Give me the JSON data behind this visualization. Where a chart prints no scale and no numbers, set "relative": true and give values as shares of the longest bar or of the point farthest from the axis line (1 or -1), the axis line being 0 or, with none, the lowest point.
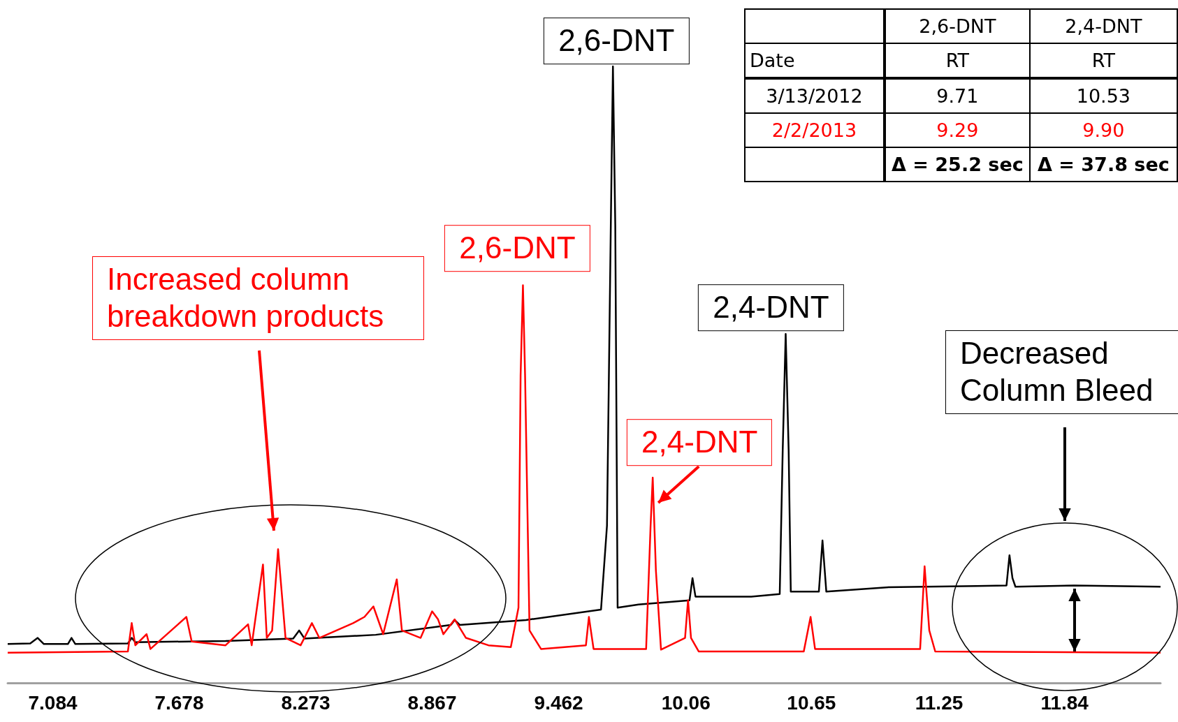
{
  "chart_data": {
    "type": "line",
    "relative": true,
    "xlim": [
      6.872,
      12.291
    ],
    "xticks": [
      7.084,
      7.678,
      8.273,
      8.867,
      9.462,
      10.06,
      10.65,
      11.25,
      11.84
    ],
    "series": [
      {
        "color": "#000000",
        "x": [
          6.872,
          6.978,
          7.013,
          7.042,
          7.155,
          7.172,
          7.19,
          7.437,
          7.455,
          7.472,
          7.896,
          8.214,
          8.242,
          8.267,
          8.602,
          8.955,
          8.973,
          8.997,
          9.308,
          9.661,
          9.689,
          9.707,
          9.717,
          9.728,
          9.739,
          9.837,
          10.077,
          10.091,
          10.105,
          10.367,
          10.501,
          10.515,
          10.529,
          10.543,
          10.553,
          10.685,
          10.702,
          10.72,
          11.002,
          11.426,
          11.567,
          11.581,
          11.595,
          11.609,
          11.885,
          12.291
        ],
        "values": [
          0.063,
          0.064,
          0.073,
          0.063,
          0.063,
          0.073,
          0.063,
          0.064,
          0.073,
          0.066,
          0.068,
          0.072,
          0.085,
          0.072,
          0.078,
          0.094,
          0.102,
          0.094,
          0.102,
          0.119,
          0.255,
          0.742,
          1,
          0.742,
          0.122,
          0.127,
          0.134,
          0.17,
          0.14,
          0.14,
          0.144,
          0.377,
          0.566,
          0.377,
          0.148,
          0.148,
          0.231,
          0.148,
          0.155,
          0.157,
          0.158,
          0.207,
          0.17,
          0.156,
          0.158,
          0.156
        ]
      },
      {
        "color": "#ff0000",
        "x": [
          6.872,
          7.437,
          7.455,
          7.472,
          7.525,
          7.543,
          7.712,
          7.737,
          7.896,
          8.002,
          8.019,
          8.072,
          8.09,
          8.115,
          8.143,
          8.178,
          8.249,
          8.302,
          8.337,
          8.496,
          8.549,
          8.591,
          8.637,
          8.701,
          8.725,
          8.813,
          8.867,
          8.895,
          8.92,
          8.973,
          9.026,
          9.132,
          9.237,
          9.273,
          9.283,
          9.294,
          9.304,
          9.325,
          9.379,
          9.59,
          9.604,
          9.626,
          9.873,
          9.894,
          9.904,
          9.919,
          9.943,
          10.056,
          10.07,
          10.084,
          10.12,
          10.614,
          10.646,
          10.667,
          11.161,
          11.182,
          11.204,
          11.232,
          12.291
        ],
        "values": [
          0.049,
          0.051,
          0.097,
          0.061,
          0.079,
          0.055,
          0.107,
          0.067,
          0.061,
          0.095,
          0.061,
          0.192,
          0.073,
          0.085,
          0.217,
          0.073,
          0.061,
          0.097,
          0.073,
          0.097,
          0.107,
          0.124,
          0.079,
          0.168,
          0.085,
          0.073,
          0.116,
          0.103,
          0.079,
          0.103,
          0.073,
          0.061,
          0.058,
          0.122,
          0.499,
          0.645,
          0.499,
          0.085,
          0.055,
          0.061,
          0.107,
          0.055,
          0.055,
          0.255,
          0.333,
          0.182,
          0.054,
          0.073,
          0.134,
          0.073,
          0.051,
          0.051,
          0.107,
          0.055,
          0.055,
          0.189,
          0.085,
          0.051,
          0.049
        ]
      }
    ],
    "annotations": [
      {
        "text": "2,6-DNT",
        "x": 9.717,
        "y": 1
      },
      {
        "text": "2,6-DNT",
        "x": 9.294,
        "y": 0.645
      },
      {
        "text": "2,4-DNT",
        "x": 10.529,
        "y": 0.566
      },
      {
        "text": "2,4-DNT",
        "x": 9.904,
        "y": 0.333
      },
      "Increased column breakdown products",
      "Decreased Column Bleed",
      "2,6-DNT",
      "2,4-DNT",
      "Date",
      "RT",
      "RT",
      "3/13/2012",
      "9.71",
      "10.53",
      "2/2/2013",
      "9.29",
      "9.90",
      "Δ = 25.2 sec",
      "Δ = 37.8 sec"
    ]
  }
}
